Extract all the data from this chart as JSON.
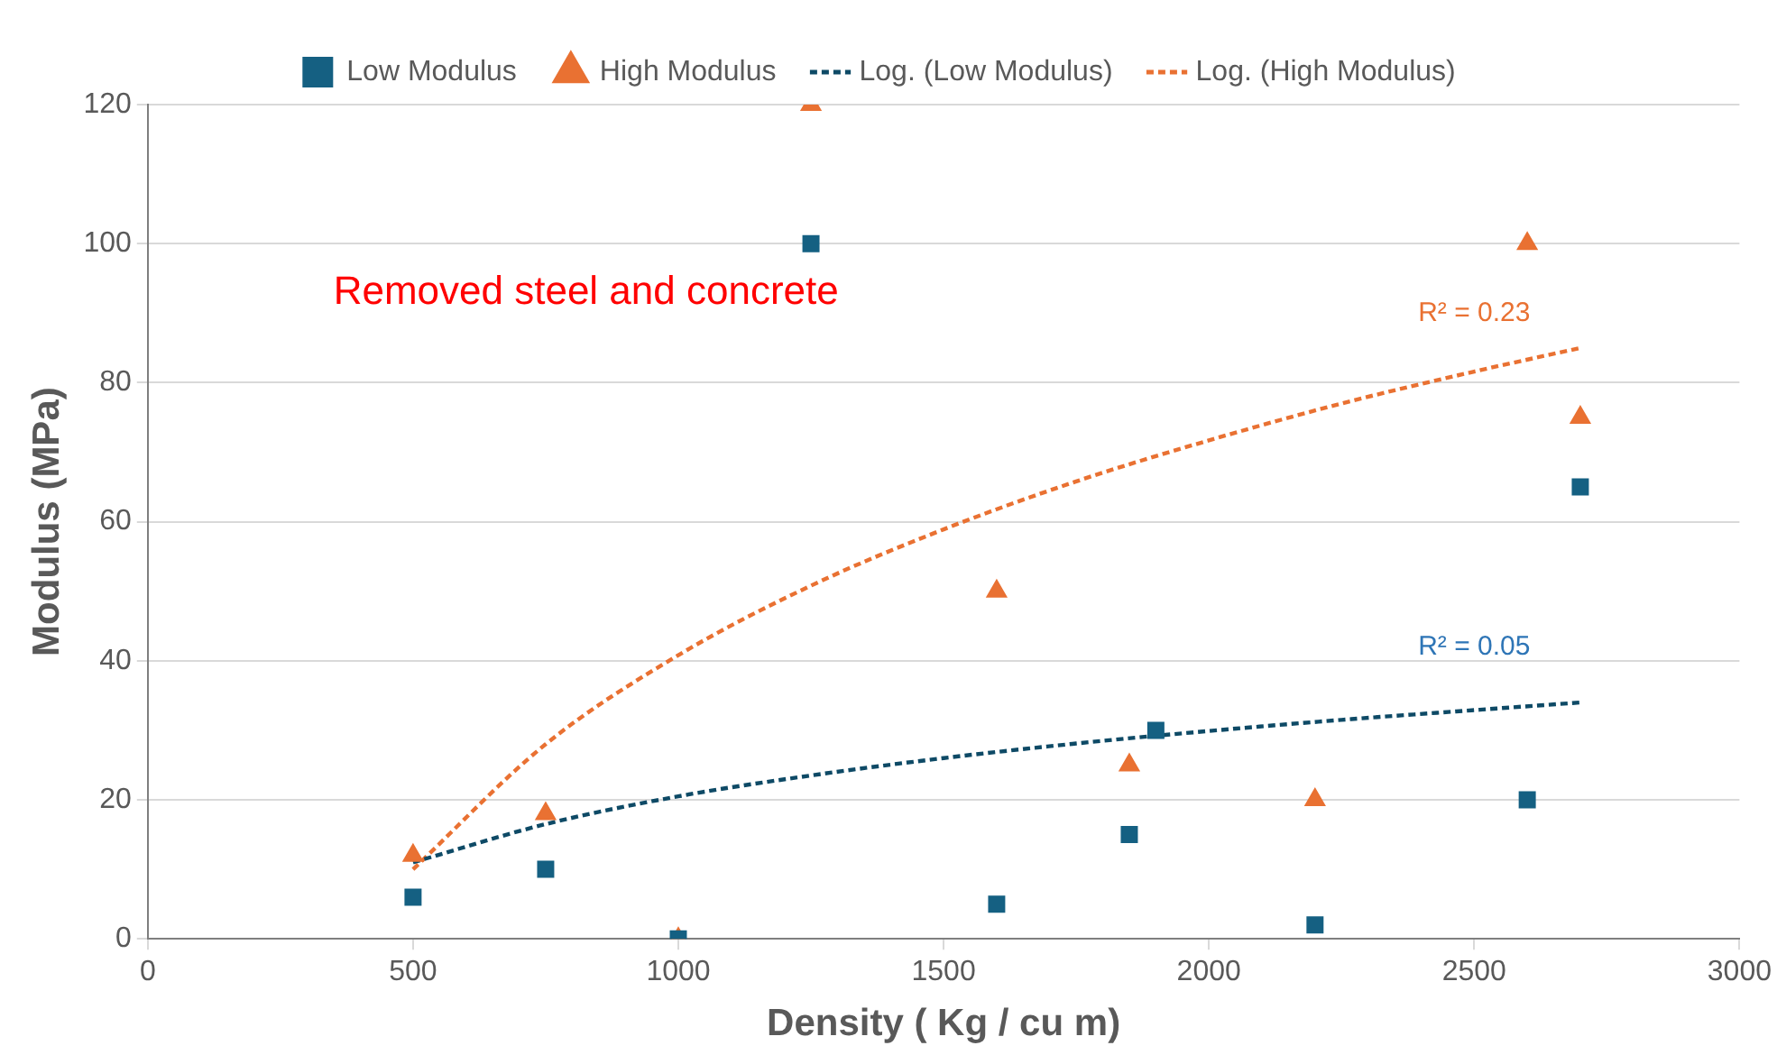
{
  "chart_data": {
    "type": "scatter",
    "xlabel": "Density ( Kg / cu m)",
    "ylabel": "Modulus (MPa)",
    "xlim": [
      0,
      3000
    ],
    "xticks": [
      0,
      500,
      1000,
      1500,
      2000,
      2500,
      3000
    ],
    "ylim": [
      0,
      120
    ],
    "yticks": [
      0,
      20,
      40,
      60,
      80,
      100,
      120
    ],
    "grid": "y",
    "legend": "top",
    "series": [
      {
        "name": "Low Modulus",
        "color": "#156082",
        "marker": "square",
        "x": [
          500,
          750,
          1000,
          1250,
          1600,
          1850,
          1900,
          2200,
          2600,
          2700
        ],
        "values": [
          6,
          10,
          0,
          100,
          5,
          15,
          30,
          2,
          20,
          65
        ]
      },
      {
        "name": "High Modulus",
        "color": "#e97132",
        "marker": "triangle",
        "x": [
          500,
          750,
          1000,
          1250,
          1600,
          1850,
          2200,
          2600,
          2700
        ],
        "values": [
          12,
          18,
          0,
          120,
          50,
          25,
          20,
          100,
          75
        ]
      },
      {
        "name": "Log. (Low Modulus)",
        "type": "line",
        "color": "#0e4a66",
        "marker": "none",
        "line_style": "dashed",
        "x": [
          500,
          750,
          1000,
          1250,
          1500,
          1750,
          2000,
          2250,
          2500,
          2700
        ],
        "values": [
          11,
          16.5,
          20.5,
          23.5,
          26,
          28.1,
          29.9,
          31.5,
          32.9,
          34
        ]
      },
      {
        "name": "Log. (High Modulus)",
        "type": "line",
        "color": "#e97132",
        "marker": "none",
        "line_style": "dashed",
        "x": [
          500,
          750,
          1000,
          1250,
          1500,
          1750,
          2000,
          2250,
          2500,
          2700
        ],
        "values": [
          10,
          28,
          40.8,
          50.8,
          58.9,
          65.8,
          71.7,
          77,
          81.6,
          85
        ]
      }
    ],
    "annotations": [
      "Removed steel and concrete",
      "R² = 0.23",
      "R² = 0.05"
    ]
  }
}
